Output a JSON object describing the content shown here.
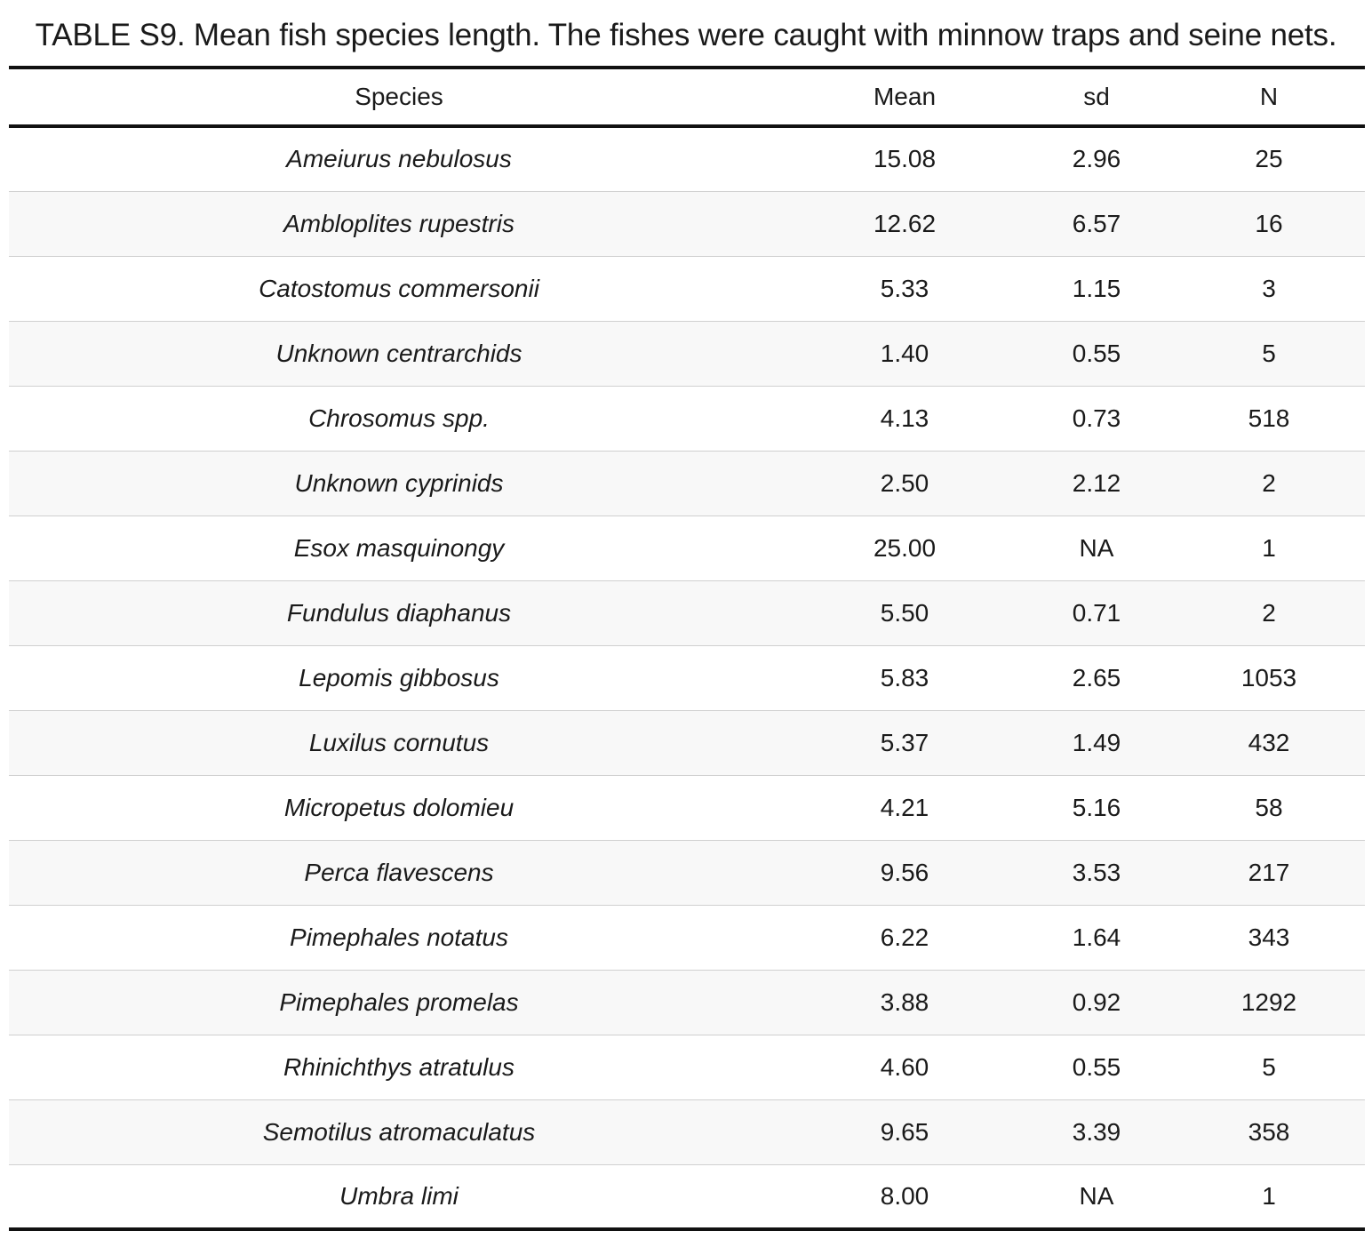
{
  "caption": {
    "label": "TABLE S9.",
    "text": " Mean fish species length. The fishes were caught with minnow traps and seine nets."
  },
  "columns": [
    "Species",
    "Mean",
    "sd",
    "N"
  ],
  "rows": [
    {
      "species": "Ameiurus nebulosus",
      "mean": "15.08",
      "sd": "2.96",
      "n": "25"
    },
    {
      "species": "Ambloplites rupestris",
      "mean": "12.62",
      "sd": "6.57",
      "n": "16"
    },
    {
      "species": "Catostomus commersonii",
      "mean": "5.33",
      "sd": "1.15",
      "n": "3"
    },
    {
      "species": "Unknown centrarchids",
      "mean": "1.40",
      "sd": "0.55",
      "n": "5"
    },
    {
      "species": "Chrosomus spp.",
      "mean": "4.13",
      "sd": "0.73",
      "n": "518"
    },
    {
      "species": "Unknown cyprinids",
      "mean": "2.50",
      "sd": "2.12",
      "n": "2"
    },
    {
      "species": "Esox masquinongy",
      "mean": "25.00",
      "sd": "NA",
      "n": "1"
    },
    {
      "species": "Fundulus diaphanus",
      "mean": "5.50",
      "sd": "0.71",
      "n": "2"
    },
    {
      "species": "Lepomis gibbosus",
      "mean": "5.83",
      "sd": "2.65",
      "n": "1053"
    },
    {
      "species": "Luxilus cornutus",
      "mean": "5.37",
      "sd": "1.49",
      "n": "432"
    },
    {
      "species": "Micropetus dolomieu",
      "mean": "4.21",
      "sd": "5.16",
      "n": "58"
    },
    {
      "species": "Perca flavescens",
      "mean": "9.56",
      "sd": "3.53",
      "n": "217"
    },
    {
      "species": "Pimephales notatus",
      "mean": "6.22",
      "sd": "1.64",
      "n": "343"
    },
    {
      "species": "Pimephales promelas",
      "mean": "3.88",
      "sd": "0.92",
      "n": "1292"
    },
    {
      "species": "Rhinichthys atratulus",
      "mean": "4.60",
      "sd": "0.55",
      "n": "5"
    },
    {
      "species": "Semotilus atromaculatus",
      "mean": "9.65",
      "sd": "3.39",
      "n": "358"
    },
    {
      "species": "Umbra limi",
      "mean": "8.00",
      "sd": "NA",
      "n": "1"
    }
  ]
}
